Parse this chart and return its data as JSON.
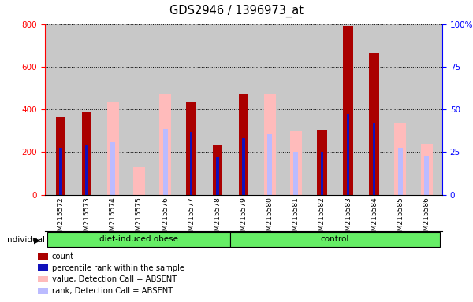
{
  "title": "GDS2946 / 1396973_at",
  "samples": [
    "GSM215572",
    "GSM215573",
    "GSM215574",
    "GSM215575",
    "GSM215576",
    "GSM215577",
    "GSM215578",
    "GSM215579",
    "GSM215580",
    "GSM215581",
    "GSM215582",
    "GSM215583",
    "GSM215584",
    "GSM215585",
    "GSM215586"
  ],
  "count": [
    365,
    385,
    0,
    0,
    0,
    435,
    235,
    475,
    0,
    0,
    305,
    790,
    665,
    0,
    0
  ],
  "percentile": [
    220,
    230,
    0,
    0,
    0,
    295,
    175,
    265,
    0,
    0,
    200,
    380,
    335,
    0,
    0
  ],
  "absent_value": [
    0,
    0,
    435,
    130,
    470,
    0,
    0,
    0,
    470,
    300,
    0,
    0,
    0,
    335,
    240
  ],
  "absent_rank": [
    0,
    0,
    250,
    0,
    310,
    0,
    0,
    0,
    285,
    200,
    0,
    0,
    0,
    220,
    185
  ],
  "groups": [
    {
      "label": "diet-induced obese",
      "start": 0,
      "end": 7
    },
    {
      "label": "control",
      "start": 7,
      "end": 15
    }
  ],
  "ylim_left": [
    0,
    800
  ],
  "ylim_right": [
    0,
    100
  ],
  "yticks_left": [
    0,
    200,
    400,
    600,
    800
  ],
  "yticks_right": [
    0,
    25,
    50,
    75,
    100
  ],
  "count_color": "#aa0000",
  "percentile_color": "#1111bb",
  "absent_value_color": "#ffbbbb",
  "absent_rank_color": "#bbbbff",
  "bg_gray": "#c8c8c8",
  "group_color": "#66ee66"
}
